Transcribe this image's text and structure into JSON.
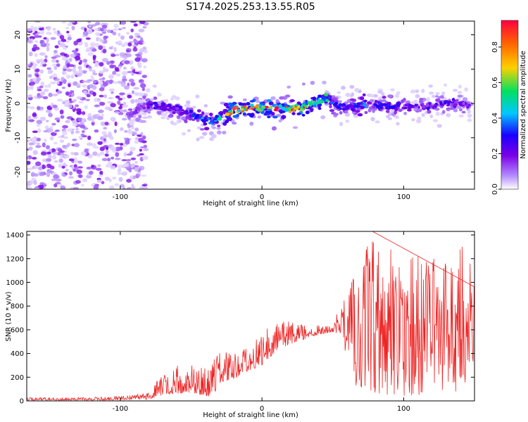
{
  "figure_title": "S174.2025.253.13.55.R05",
  "chart_data": [
    {
      "type": "heatmap",
      "title": "S174.2025.253.13.55.R05",
      "xlabel": "Height of straight line (km)",
      "ylabel": "Frequency (Hz)",
      "xlim": [
        -166,
        150
      ],
      "ylim": [
        -25,
        24
      ],
      "xticks": [
        -100,
        0,
        100
      ],
      "yticks": [
        -20,
        -10,
        0,
        10,
        20
      ],
      "colorbar": {
        "label": "Normalized spectral amplitude",
        "range": [
          0.0,
          0.95
        ],
        "ticks": [
          0.0,
          0.2,
          0.4,
          0.6,
          0.8
        ],
        "tick_labels": [
          "0.0",
          "0.2",
          "0.4",
          "0.6",
          "0.8"
        ],
        "colors": [
          "#ffffff",
          "#b38cff",
          "#7a00e6",
          "#1a00ff",
          "#00c8ff",
          "#00e060",
          "#ffd000",
          "#ff0040"
        ]
      },
      "noise_region": {
        "x": [
          -166,
          -82
        ],
        "y": [
          -25,
          24
        ],
        "amplitude": [
          0.05,
          0.3
        ]
      },
      "signal_ridge": {
        "x": [
          -95,
          -85,
          -80,
          -70,
          -60,
          -50,
          -40,
          -35,
          -30,
          -20,
          -10,
          0,
          10,
          20,
          30,
          40,
          45,
          50,
          60,
          70,
          80,
          90,
          100,
          110,
          120,
          130,
          140,
          148
        ],
        "frequency": [
          -4,
          -1,
          -0.5,
          -1,
          -2,
          -3,
          -5,
          -5.5,
          -4,
          -2,
          -1.5,
          -1.5,
          -1.5,
          -1.5,
          -1,
          0.5,
          2,
          -0.5,
          -1,
          -0.5,
          0,
          -1,
          -1,
          -1,
          -1,
          0,
          0,
          -1
        ],
        "amplitude": [
          0.2,
          0.3,
          0.35,
          0.35,
          0.35,
          0.4,
          0.55,
          0.5,
          0.6,
          0.9,
          0.85,
          0.9,
          0.9,
          0.85,
          0.85,
          0.75,
          0.7,
          0.4,
          0.4,
          0.5,
          0.4,
          0.4,
          0.35,
          0.35,
          0.35,
          0.35,
          0.3,
          0.3
        ]
      }
    },
    {
      "type": "line",
      "xlabel": "Height of straight line (km)",
      "ylabel": "SNR (10 * v/v)",
      "xlim": [
        -166,
        150
      ],
      "ylim": [
        0,
        1430
      ],
      "xticks": [
        -100,
        0,
        100
      ],
      "yticks": [
        0,
        200,
        400,
        600,
        800,
        1000,
        1200,
        1400
      ],
      "series": [
        {
          "name": "SNR",
          "color": "#ee2222",
          "envelope": {
            "x": [
              -166,
              -120,
              -82,
              -78,
              -70,
              -60,
              -50,
              -40,
              -35,
              -30,
              -20,
              -10,
              0,
              10,
              20,
              30,
              40,
              50,
              55,
              58,
              65,
              80,
              100,
              120,
              150
            ],
            "low": [
              5,
              5,
              10,
              20,
              50,
              60,
              70,
              40,
              30,
              150,
              180,
              250,
              300,
              420,
              480,
              520,
              560,
              580,
              560,
              450,
              100,
              50,
              40,
              60,
              80
            ],
            "high": [
              30,
              30,
              60,
              120,
              220,
              300,
              320,
              280,
              350,
              420,
              400,
              520,
              600,
              650,
              700,
              640,
              650,
              630,
              820,
              900,
              1100,
              1430,
              1250,
              1200,
              1350
            ]
          },
          "peak": {
            "x": 78,
            "y": 1430
          }
        }
      ]
    }
  ]
}
